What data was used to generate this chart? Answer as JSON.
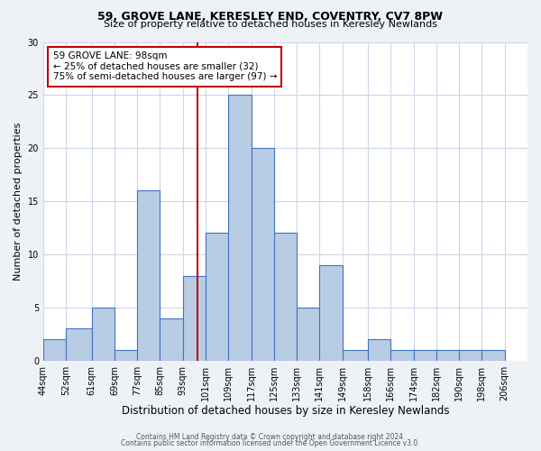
{
  "title1": "59, GROVE LANE, KERESLEY END, COVENTRY, CV7 8PW",
  "title2": "Size of property relative to detached houses in Keresley Newlands",
  "xlabel": "Distribution of detached houses by size in Keresley Newlands",
  "ylabel": "Number of detached properties",
  "bin_labels": [
    "44sqm",
    "52sqm",
    "61sqm",
    "69sqm",
    "77sqm",
    "85sqm",
    "93sqm",
    "101sqm",
    "109sqm",
    "117sqm",
    "125sqm",
    "133sqm",
    "141sqm",
    "149sqm",
    "158sqm",
    "166sqm",
    "174sqm",
    "182sqm",
    "190sqm",
    "198sqm",
    "206sqm"
  ],
  "bin_edges": [
    44,
    52,
    61,
    69,
    77,
    85,
    93,
    101,
    109,
    117,
    125,
    133,
    141,
    149,
    158,
    166,
    174,
    182,
    190,
    198,
    206
  ],
  "counts": [
    2,
    3,
    5,
    1,
    16,
    4,
    8,
    12,
    25,
    20,
    12,
    5,
    9,
    1,
    2,
    1,
    1,
    1,
    1,
    1
  ],
  "bar_color": "#b8cce4",
  "bar_edge_color": "#4472c4",
  "vline_x": 98,
  "vline_color": "#c00000",
  "annotation_line1": "59 GROVE LANE: 98sqm",
  "annotation_line2": "← 25% of detached houses are smaller (32)",
  "annotation_line3": "75% of semi-detached houses are larger (97) →",
  "box_edge_color": "#c00000",
  "ylim": [
    0,
    30
  ],
  "yticks": [
    0,
    5,
    10,
    15,
    20,
    25,
    30
  ],
  "footer1": "Contains HM Land Registry data © Crown copyright and database right 2024.",
  "footer2": "Contains public sector information licensed under the Open Government Licence v3.0.",
  "bg_color": "#eef2f7",
  "plot_bg_color": "#ffffff",
  "grid_color": "#ccd6e8"
}
